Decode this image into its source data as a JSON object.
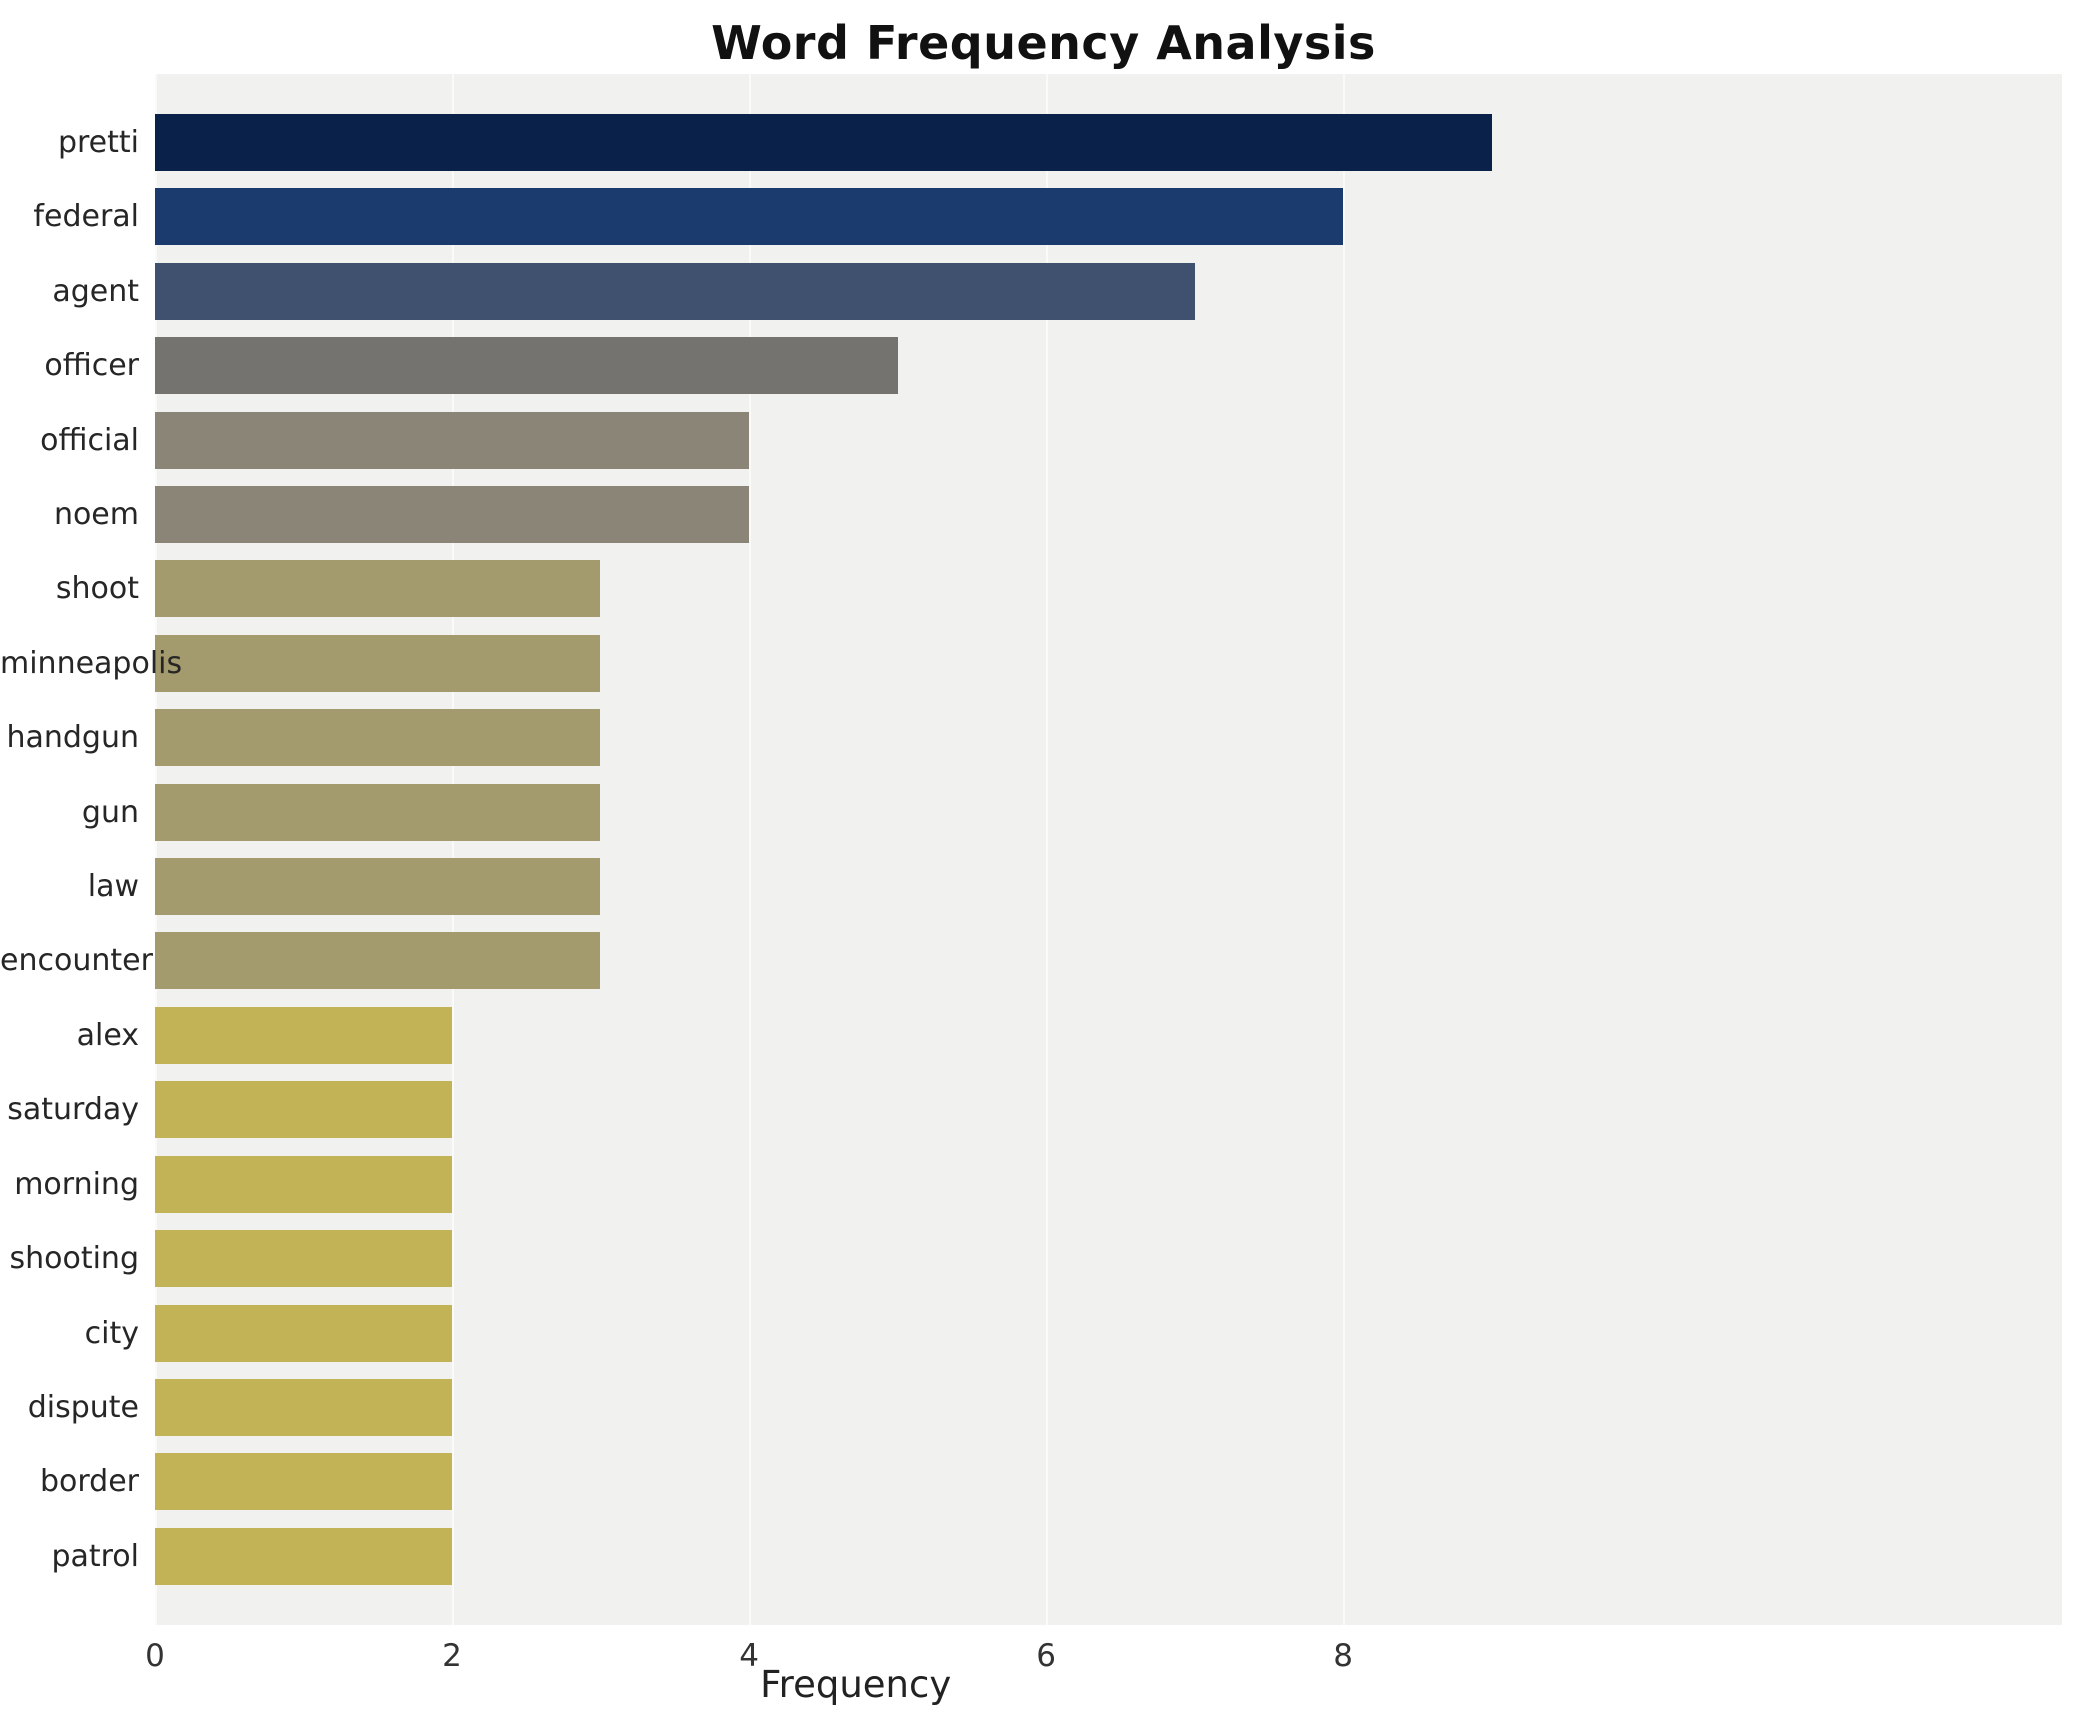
{
  "title": "Word Frequency Analysis",
  "axis": {
    "xlabel": "Frequency"
  },
  "style": {
    "page_bg": "#ffffff",
    "plot_bg": "#f1f1ef",
    "grid_color": "#fafaf8",
    "label_color": "#262626",
    "title_color": "#111111"
  },
  "chart_data": {
    "type": "bar",
    "orientation": "horizontal",
    "title": "Word Frequency Analysis",
    "xlabel": "Frequency",
    "ylabel": "",
    "categories": [
      "pretti",
      "federal",
      "agent",
      "officer",
      "official",
      "noem",
      "shoot",
      "minneapolis",
      "handgun",
      "gun",
      "law",
      "encounter",
      "alex",
      "saturday",
      "morning",
      "shooting",
      "city",
      "dispute",
      "border",
      "patrol"
    ],
    "values": [
      9,
      8,
      7,
      5,
      4,
      4,
      3,
      3,
      3,
      3,
      3,
      3,
      2,
      2,
      2,
      2,
      2,
      2,
      2,
      2
    ],
    "bar_colors": [
      "#0a2149",
      "#1b3a6d",
      "#40506f",
      "#747370",
      "#8a8577",
      "#8a8577",
      "#a39a6d",
      "#a39a6d",
      "#a39a6d",
      "#a39a6d",
      "#a39a6d",
      "#a39a6d",
      "#c2b357",
      "#c2b357",
      "#c2b357",
      "#c2b357",
      "#c2b357",
      "#c2b357",
      "#c2b357",
      "#c2b357"
    ],
    "xlim": [
      0,
      12.84
    ],
    "xticks": [
      0,
      2,
      4,
      6,
      8
    ],
    "grid": true,
    "legend": false,
    "gridline_axis": "x"
  }
}
